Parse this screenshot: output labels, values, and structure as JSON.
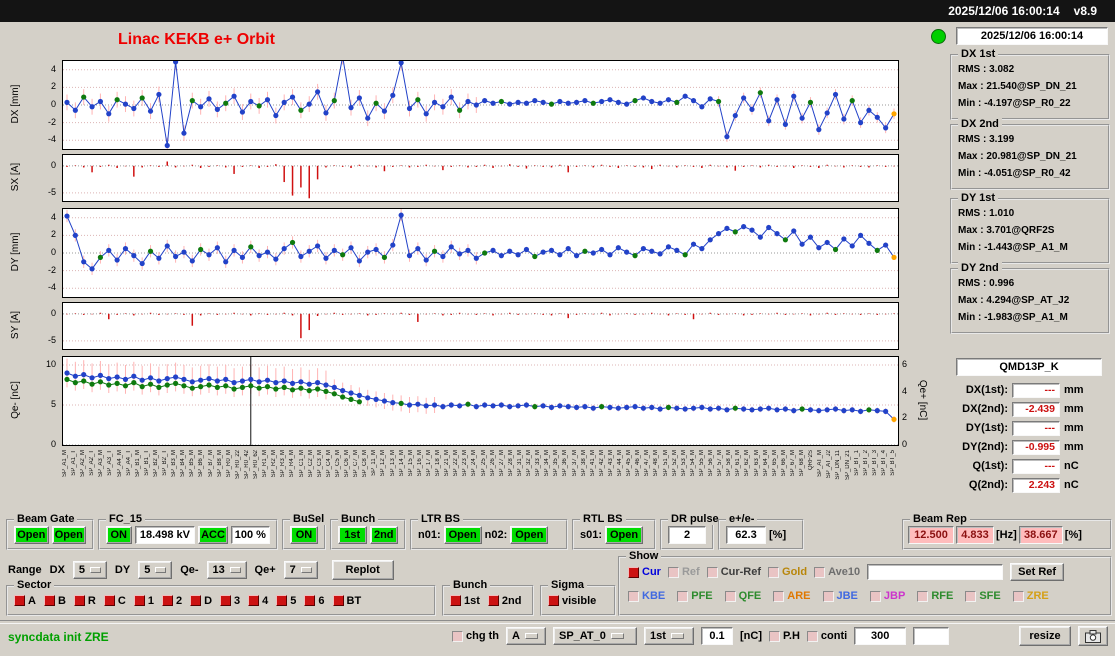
{
  "titlebar": {
    "datetime": "2025/12/06 16:00:14",
    "version": "v8.9"
  },
  "header": {
    "title": "Linac KEKB e+ Orbit",
    "timestamp": "2025/12/06 16:00:14"
  },
  "stats": [
    {
      "title": "DX 1st",
      "rms": "RMS :  3.082",
      "max": "Max :  21.540@SP_DN_21",
      "min": "Min :  -4.197@SP_R0_22"
    },
    {
      "title": "DX 2nd",
      "rms": "RMS :  3.199",
      "max": "Max :  20.981@SP_DN_21",
      "min": "Min :  -4.051@SP_R0_42"
    },
    {
      "title": "DY 1st",
      "rms": "RMS :  1.010",
      "max": "Max :  3.701@QRF2S",
      "min": "Min :  -1.443@SP_A1_M"
    },
    {
      "title": "DY 2nd",
      "rms": "RMS :  0.996",
      "max": "Max :  4.294@SP_AT_J2",
      "min": "Min :  -1.983@SP_A1_M"
    }
  ],
  "monitor": {
    "name": "QMD13P_K",
    "rows": [
      {
        "label": "DX(1st):",
        "value": "---",
        "unit": "mm"
      },
      {
        "label": "DX(2nd):",
        "value": "-2.439",
        "unit": "mm"
      },
      {
        "label": "DY(1st):",
        "value": "---",
        "unit": "mm"
      },
      {
        "label": "DY(2nd):",
        "value": "-0.995",
        "unit": "mm"
      },
      {
        "label": "Q(1st):",
        "value": "---",
        "unit": "nC"
      },
      {
        "label": "Q(2nd):",
        "value": "2.243",
        "unit": "nC"
      }
    ]
  },
  "top_controls": {
    "beam_gate": {
      "title": "Beam Gate",
      "b1": "Open",
      "b2": "Open"
    },
    "fc15": {
      "title": "FC_15",
      "on": "ON",
      "kv": "18.498 kV",
      "acc": "ACC",
      "pct": "100 %"
    },
    "busel": {
      "title": "BuSel",
      "on": "ON"
    },
    "bunch": {
      "title": "Bunch",
      "b1": "1st",
      "b2": "2nd"
    },
    "ltr_bs": {
      "title": "LTR BS",
      "n01_label": "n01:",
      "n01": "Open",
      "n02_label": "n02:",
      "n02": "Open"
    },
    "rtl_bs": {
      "title": "RTL BS",
      "s01_label": "s01:",
      "s01": "Open"
    },
    "dr_pulse": {
      "title": "DR pulse",
      "value": "2"
    },
    "e_ratio": {
      "title": "e+/e-",
      "value": "62.3",
      "unit": "[%]"
    },
    "beam_rep": {
      "title": "Beam Rep",
      "v1": "12.500",
      "v2": "4.833",
      "hz": "[Hz]",
      "v3": "38.667",
      "pct": "[%]"
    }
  },
  "range_row": {
    "label": "Range",
    "dx_label": "DX",
    "dx": "5",
    "dy_label": "DY",
    "dy": "5",
    "qem_label": "Qe-",
    "qem": "13",
    "qep_label": "Qe+",
    "qep": "7",
    "replot": "Replot"
  },
  "sector": {
    "title": "Sector",
    "items": [
      {
        "label": "A",
        "checked": true
      },
      {
        "label": "B",
        "checked": true
      },
      {
        "label": "R",
        "checked": true
      },
      {
        "label": "C",
        "checked": true
      },
      {
        "label": "1",
        "checked": true
      },
      {
        "label": "2",
        "checked": true
      },
      {
        "label": "D",
        "checked": true
      },
      {
        "label": "3",
        "checked": true
      },
      {
        "label": "4",
        "checked": true
      },
      {
        "label": "5",
        "checked": true
      },
      {
        "label": "6",
        "checked": true
      },
      {
        "label": "BT",
        "checked": true
      }
    ]
  },
  "bunch_sel": {
    "title": "Bunch",
    "items": [
      {
        "label": "1st",
        "checked": true
      },
      {
        "label": "2nd",
        "checked": true
      }
    ]
  },
  "sigma": {
    "title": "Sigma",
    "items": [
      {
        "label": "visible",
        "checked": true
      }
    ]
  },
  "show": {
    "title": "Show",
    "row1": [
      {
        "label": "Cur",
        "color": "#0000dd",
        "checked": true
      },
      {
        "label": "Ref",
        "color": "#9a9a9a",
        "checked": false
      },
      {
        "label": "Cur-Ref",
        "color": "#3c3c3c",
        "checked": false
      },
      {
        "label": "Gold",
        "color": "#b8860b",
        "checked": false
      },
      {
        "label": "Ave10",
        "color": "#6e6e6e",
        "checked": false
      }
    ],
    "input_value": "",
    "set_ref": "Set Ref",
    "row2": [
      {
        "label": "KBE",
        "color": "#4169e1",
        "checked": false
      },
      {
        "label": "PFE",
        "color": "#2e8b2e",
        "checked": false
      },
      {
        "label": "QFE",
        "color": "#2e8b2e",
        "checked": false
      },
      {
        "label": "ARE",
        "color": "#e07800",
        "checked": false
      },
      {
        "label": "JBE",
        "color": "#4169e1",
        "checked": false
      },
      {
        "label": "JBP",
        "color": "#cc33cc",
        "checked": false
      },
      {
        "label": "RFE",
        "color": "#2e8b2e",
        "checked": false
      },
      {
        "label": "SFE",
        "color": "#2e8b2e",
        "checked": false
      },
      {
        "label": "ZRE",
        "color": "#d4a017",
        "checked": false
      }
    ]
  },
  "statusbar": {
    "message": "syncdata init ZRE",
    "chg_th": "chg th",
    "combo_a": "A",
    "combo_sp": "SP_AT_0",
    "combo_1st": "1st",
    "threshold": "0.1",
    "unit": "[nC]",
    "ph": "P.H",
    "conti": "conti",
    "num": "300",
    "aux": "",
    "resize": "resize"
  },
  "xaxis_labels": [
    "SP_A1_M",
    "SP_A1_T",
    "SP_A2_M",
    "SP_A2_T",
    "SP_A3_M",
    "SP_A3_T",
    "SP_A4_M",
    "SP_A4_T",
    "SP_B1_M",
    "SP_B1_T",
    "SP_B2_M",
    "SP_B2_T",
    "SP_B3_M",
    "SP_B4_M",
    "SP_B5_M",
    "SP_B6_M",
    "SP_B7_M",
    "SP_B8_M",
    "SP_R0_M",
    "SP_R0_22",
    "SP_R0_42",
    "SP_R0_62",
    "SP_R1_M",
    "SP_R2_M",
    "SP_R3_M",
    "SP_R4_M",
    "SP_C1_M",
    "SP_C2_M",
    "SP_C3_M",
    "SP_C4_M",
    "SP_C5_M",
    "SP_C6_M",
    "SP_C7_M",
    "SP_C8_M",
    "SP_11_M",
    "SP_12_M",
    "SP_13_M",
    "SP_14_M",
    "SP_15_M",
    "SP_16_M",
    "SP_17_M",
    "SP_18_M",
    "SP_21_M",
    "SP_22_M",
    "SP_23_M",
    "SP_24_M",
    "SP_25_M",
    "SP_26_M",
    "SP_27_M",
    "SP_28_M",
    "SP_31_M",
    "SP_32_M",
    "SP_33_M",
    "SP_34_M",
    "SP_35_M",
    "SP_36_M",
    "SP_37_M",
    "SP_38_M",
    "SP_41_M",
    "SP_42_M",
    "SP_43_M",
    "SP_44_M",
    "SP_45_M",
    "SP_46_M",
    "SP_47_M",
    "SP_48_M",
    "SP_51_M",
    "SP_52_M",
    "SP_53_M",
    "SP_54_M",
    "SP_55_M",
    "SP_56_M",
    "SP_57_M",
    "SP_58_M",
    "SP_61_M",
    "SP_62_M",
    "SP_63_M",
    "SP_64_M",
    "SP_65_M",
    "SP_66_M",
    "SP_67_M",
    "SP_68_M",
    "QRF2S",
    "SP_AT_M",
    "SP_AT_J2",
    "SP_DN_11",
    "SP_DN_21",
    "SP_BT_1",
    "SP_BT_2",
    "SP_BT_3",
    "SP_BT_4",
    "SP_BT_5"
  ],
  "chart_data": [
    {
      "id": "dx",
      "type": "scatter-line",
      "ylabel": "DX [mm]",
      "ylim": [
        -5,
        5
      ],
      "yticks": [
        4,
        2,
        0,
        -2,
        -4
      ],
      "series_color": "#2242c8",
      "green_color": "#0e7a0e",
      "err_color": "#ffb3b3",
      "end_color": "#ffa500",
      "green_idx": [
        2,
        6,
        9,
        15,
        19,
        23,
        28,
        32,
        37,
        42,
        47,
        52,
        58,
        63,
        68,
        73,
        78,
        83,
        89,
        94
      ],
      "err_regions": [
        {
          "from": 0,
          "to": 50,
          "mag": 0.9
        },
        {
          "from": 50,
          "to": 78,
          "mag": 0.3
        },
        {
          "from": 78,
          "to": 100,
          "mag": 0.6
        }
      ],
      "values": [
        0.3,
        -0.6,
        0.9,
        -0.2,
        0.4,
        -1.0,
        0.6,
        0.1,
        -0.4,
        0.8,
        -0.7,
        1.2,
        -4.6,
        4.9,
        -3.2,
        0.5,
        -0.2,
        0.7,
        -0.5,
        0.2,
        1.0,
        -0.8,
        0.4,
        -0.1,
        0.6,
        -1.2,
        0.3,
        0.9,
        -0.6,
        0.1,
        1.5,
        -0.9,
        0.5,
        5.5,
        -0.3,
        0.8,
        -1.5,
        0.2,
        -0.7,
        1.1,
        4.8,
        -0.4,
        0.6,
        -1.0,
        0.3,
        -0.2,
        0.9,
        -0.6,
        0.4,
        0.0,
        0.5,
        0.2,
        0.4,
        0.1,
        0.3,
        0.2,
        0.5,
        0.3,
        0.1,
        0.4,
        0.2,
        0.3,
        0.5,
        0.2,
        0.4,
        0.6,
        0.3,
        0.1,
        0.5,
        0.8,
        0.4,
        0.2,
        0.6,
        0.3,
        1.0,
        0.5,
        -0.2,
        0.7,
        0.4,
        -3.6,
        -1.2,
        0.8,
        -0.5,
        1.4,
        -1.8,
        0.6,
        -2.2,
        1.0,
        -1.5,
        0.3,
        -2.8,
        -0.9,
        1.2,
        -1.6,
        0.5,
        -2.0,
        -0.6,
        -1.4,
        -2.6,
        -1.0
      ]
    },
    {
      "id": "sx",
      "type": "bar",
      "ylabel": "SX [A]",
      "ylim": [
        -6.5,
        2
      ],
      "yticks": [
        0,
        -5
      ],
      "bar_color": "#d01010",
      "values": [
        -0.2,
        0.1,
        -0.3,
        -1.2,
        -0.2,
        0.2,
        -0.4,
        -0.1,
        -2.0,
        -0.3,
        0.1,
        -0.2,
        0.8,
        -0.3,
        -0.1,
        0.2,
        -0.4,
        -0.2,
        0.1,
        -0.3,
        -1.5,
        -0.2,
        0.1,
        -0.4,
        -0.2,
        0.3,
        -3.0,
        -5.5,
        -4.0,
        -6.0,
        -2.5,
        -0.3,
        0.1,
        -0.2,
        -0.4,
        0.2,
        -0.1,
        -0.3,
        -1.0,
        -0.2,
        0.1,
        -0.3,
        -0.2,
        0.2,
        -0.1,
        -0.8,
        -0.2,
        0.1,
        -0.3,
        -0.2,
        0.2,
        -0.4,
        -0.1,
        0.3,
        -0.2,
        -0.5,
        0.1,
        -0.2,
        -0.3,
        0.2,
        -1.2,
        -0.2,
        0.1,
        -0.3,
        0.2,
        -0.2,
        -0.4,
        0.1,
        -0.2,
        -0.3,
        -0.6,
        0.2,
        -0.1,
        -0.3,
        0.1,
        -0.2,
        -0.4,
        0.2,
        -0.1,
        -0.3,
        -0.9,
        -0.2,
        0.1,
        -0.3,
        0.2,
        -0.2,
        -0.1,
        -0.4,
        0.1,
        -0.2,
        -0.4,
        0.2,
        -0.1,
        -0.3,
        0.1,
        -0.2,
        -0.3,
        0.1,
        -0.2,
        -0.1
      ]
    },
    {
      "id": "dy",
      "type": "scatter-line",
      "ylabel": "DY [mm]",
      "ylim": [
        -5,
        5
      ],
      "yticks": [
        4,
        2,
        0,
        -2,
        -4
      ],
      "series_color": "#2242c8",
      "green_color": "#0e7a0e",
      "err_color": "#ffb3b3",
      "end_color": "#ffa500",
      "green_idx": [
        4,
        10,
        16,
        22,
        27,
        33,
        38,
        44,
        50,
        56,
        62,
        68,
        74,
        80,
        86,
        92,
        97
      ],
      "err_regions": [
        {
          "from": 0,
          "to": 50,
          "mag": 0.7
        },
        {
          "from": 50,
          "to": 100,
          "mag": 0.3
        }
      ],
      "values": [
        4.2,
        2.0,
        -1.0,
        -1.8,
        -0.5,
        0.3,
        -0.8,
        0.5,
        -0.3,
        -1.2,
        0.2,
        -0.6,
        0.8,
        -0.4,
        0.1,
        -0.9,
        0.4,
        -0.2,
        0.6,
        -1.0,
        0.3,
        -0.5,
        0.7,
        -0.3,
        0.1,
        -0.7,
        0.5,
        1.2,
        -0.4,
        0.2,
        0.8,
        -0.6,
        0.3,
        -0.2,
        0.6,
        -0.9,
        0.1,
        0.4,
        -0.5,
        0.9,
        4.3,
        -0.3,
        0.5,
        -0.8,
        0.2,
        -0.4,
        0.7,
        -0.1,
        0.3,
        -0.6,
        0.0,
        0.3,
        -0.3,
        0.2,
        -0.2,
        0.4,
        -0.4,
        0.1,
        0.3,
        -0.2,
        0.5,
        -0.3,
        0.2,
        0.0,
        0.4,
        -0.2,
        0.6,
        0.1,
        -0.3,
        0.5,
        0.2,
        -0.1,
        0.7,
        0.3,
        -0.2,
        1.0,
        0.5,
        1.5,
        2.2,
        2.8,
        2.4,
        3.0,
        2.6,
        1.8,
        2.9,
        2.2,
        1.5,
        2.5,
        1.0,
        1.8,
        0.6,
        1.2,
        0.4,
        1.6,
        0.8,
        2.0,
        1.1,
        0.3,
        0.9,
        -0.5
      ]
    },
    {
      "id": "sy",
      "type": "bar",
      "ylabel": "SY [A]",
      "ylim": [
        -6.5,
        2
      ],
      "yticks": [
        0,
        -5
      ],
      "bar_color": "#d01010",
      "values": [
        -0.1,
        0.1,
        -0.2,
        -0.1,
        0.2,
        -1.0,
        -0.2,
        0.1,
        -0.3,
        -0.1,
        0.2,
        -0.2,
        -0.1,
        0.1,
        -0.2,
        -2.2,
        -0.3,
        0.1,
        -0.2,
        -0.1,
        0.2,
        -0.1,
        -0.3,
        0.1,
        -0.2,
        -0.1,
        0.2,
        -0.3,
        -4.5,
        -3.0,
        -0.4,
        -0.1,
        0.2,
        -0.2,
        -0.1,
        0.1,
        -0.3,
        -0.2,
        0.1,
        -0.1,
        0.2,
        -0.2,
        -1.5,
        -0.1,
        0.1,
        -0.3,
        -0.2,
        0.2,
        -0.1,
        -0.2,
        0.1,
        -0.3,
        -0.1,
        0.2,
        -0.2,
        -0.1,
        0.1,
        -0.2,
        -0.3,
        0.1,
        -0.8,
        -0.2,
        0.1,
        -0.1,
        0.2,
        -0.3,
        -0.1,
        0.1,
        -0.2,
        -0.1,
        0.2,
        -0.1,
        -0.3,
        0.1,
        -0.2,
        -1.0,
        -0.1,
        0.2,
        -0.2,
        -0.1,
        0.1,
        -0.3,
        -0.2,
        0.1,
        -0.1,
        0.2,
        -0.2,
        -0.1,
        0.1,
        -0.3,
        -0.1,
        0.2,
        -0.2,
        0.1,
        -0.1,
        -0.2,
        0.1,
        -0.2,
        -0.1,
        0.1
      ]
    },
    {
      "id": "q",
      "type": "scatter-line",
      "ylabel": "Qe- [nC]",
      "ylabel_right": "Qe+ [nC]",
      "ylim": [
        0,
        11
      ],
      "yticks": [
        10,
        5,
        0
      ],
      "right_ylim": [
        0,
        6.6
      ],
      "right_yticks": [
        6,
        4,
        2,
        0
      ],
      "series_color": "#2242c8",
      "green_color": "#0e7a0e",
      "err_color": "#ffb3b3",
      "end_color": "#ffa500",
      "green_idx": [
        40,
        48,
        56,
        64,
        72,
        80,
        88,
        96
      ],
      "vline_idx": 22,
      "err_regions": [
        {
          "from": 0,
          "to": 32,
          "mag": 1.8
        },
        {
          "from": 32,
          "to": 45,
          "mag": 1.0
        },
        {
          "from": 45,
          "to": 100,
          "mag": 0.4
        }
      ],
      "values": [
        9.0,
        8.6,
        8.8,
        8.4,
        8.7,
        8.3,
        8.5,
        8.2,
        8.6,
        8.1,
        8.4,
        8.0,
        8.3,
        8.5,
        8.2,
        7.9,
        8.1,
        8.3,
        8.0,
        8.2,
        7.8,
        8.0,
        8.2,
        7.9,
        8.1,
        7.8,
        8.0,
        7.7,
        7.9,
        7.6,
        7.8,
        7.5,
        7.2,
        6.8,
        6.5,
        6.2,
        5.9,
        5.7,
        5.5,
        5.3,
        5.2,
        5.0,
        5.1,
        4.9,
        5.0,
        4.8,
        5.0,
        4.9,
        5.1,
        4.8,
        5.0,
        4.9,
        5.0,
        4.8,
        4.9,
        5.0,
        4.8,
        4.9,
        4.7,
        4.9,
        4.8,
        4.7,
        4.8,
        4.6,
        4.8,
        4.7,
        4.6,
        4.7,
        4.8,
        4.6,
        4.7,
        4.5,
        4.7,
        4.6,
        4.5,
        4.6,
        4.7,
        4.5,
        4.6,
        4.4,
        4.6,
        4.5,
        4.4,
        4.5,
        4.6,
        4.4,
        4.5,
        4.3,
        4.5,
        4.4,
        4.3,
        4.4,
        4.5,
        4.3,
        4.4,
        4.2,
        4.4,
        4.3,
        4.2,
        3.2
      ],
      "color2": "#0e7a0e",
      "values2": [
        8.2,
        7.8,
        8.0,
        7.6,
        7.9,
        7.5,
        7.7,
        7.4,
        7.8,
        7.3,
        7.6,
        7.2,
        7.5,
        7.7,
        7.4,
        7.1,
        7.3,
        7.5,
        7.2,
        7.4,
        7.0,
        7.2,
        7.4,
        7.1,
        7.3,
        7.0,
        7.2,
        6.9,
        7.1,
        6.8,
        7.0,
        6.7,
        6.4,
        6.0,
        5.7,
        5.4
      ]
    }
  ]
}
